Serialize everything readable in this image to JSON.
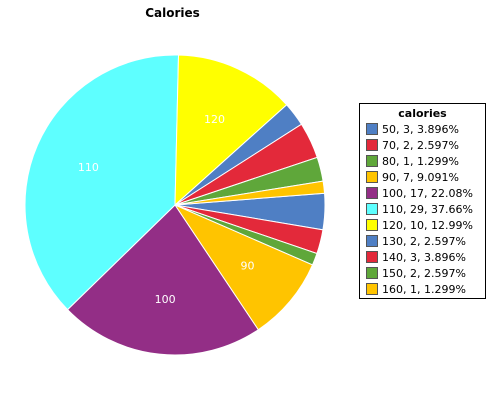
{
  "chart_data": {
    "type": "pie",
    "title": "Calories",
    "legend_title": "calories",
    "legend_placement": "right",
    "slices": [
      {
        "label": "50",
        "count": 3,
        "percent": 3.896,
        "legend": "50, 3, 3.896%",
        "color": "#4F7FC4",
        "slice_label": ""
      },
      {
        "label": "70",
        "count": 2,
        "percent": 2.597,
        "legend": "70, 2, 2.597%",
        "color": "#E3293A",
        "slice_label": ""
      },
      {
        "label": "80",
        "count": 1,
        "percent": 1.299,
        "legend": "80, 1, 1.299%",
        "color": "#5FA73A",
        "slice_label": ""
      },
      {
        "label": "90",
        "count": 7,
        "percent": 9.091,
        "legend": "90, 7, 9.091%",
        "color": "#FFC400",
        "slice_label": "90"
      },
      {
        "label": "100",
        "count": 17,
        "percent": 22.08,
        "legend": "100, 17, 22.08%",
        "color": "#932E86",
        "slice_label": "100"
      },
      {
        "label": "110",
        "count": 29,
        "percent": 37.66,
        "legend": "110, 29, 37.66%",
        "color": "#5EFFFF",
        "slice_label": "110"
      },
      {
        "label": "120",
        "count": 10,
        "percent": 12.99,
        "legend": "120, 10, 12.99%",
        "color": "#FFFF00",
        "slice_label": "120"
      },
      {
        "label": "130",
        "count": 2,
        "percent": 2.597,
        "legend": "130, 2, 2.597%",
        "color": "#4F7FC4",
        "slice_label": ""
      },
      {
        "label": "140",
        "count": 3,
        "percent": 3.896,
        "legend": "140, 3, 3.896%",
        "color": "#E3293A",
        "slice_label": ""
      },
      {
        "label": "150",
        "count": 2,
        "percent": 2.597,
        "legend": "150, 2, 2.597%",
        "color": "#5FA73A",
        "slice_label": ""
      },
      {
        "label": "160",
        "count": 1,
        "percent": 1.299,
        "legend": "160, 1, 1.299%",
        "color": "#FFC400",
        "slice_label": ""
      }
    ]
  }
}
